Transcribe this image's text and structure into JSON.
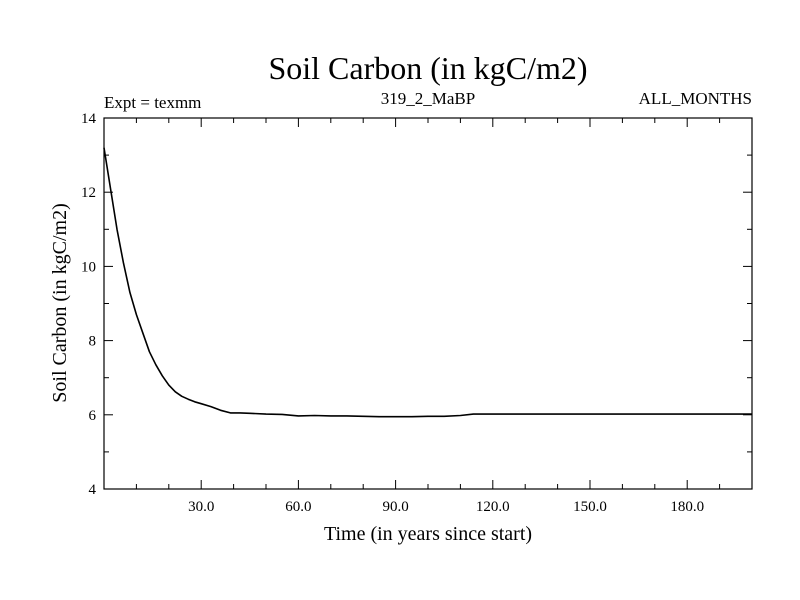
{
  "chart_data": {
    "type": "line",
    "title": "Soil Carbon (in kgC/m2)",
    "subtitle_left": "Expt = texmm",
    "subtitle_center": "319_2_MaBP",
    "subtitle_right": "ALL_MONTHS",
    "xlabel": "Time (in years since start)",
    "ylabel": "Soil Carbon (in kgC/m2)",
    "xlim": [
      0,
      200
    ],
    "ylim": [
      4,
      14
    ],
    "xticks": [
      30,
      60,
      90,
      120,
      150,
      180
    ],
    "xtick_labels": [
      "30.0",
      "60.0",
      "90.0",
      "120.0",
      "150.0",
      "180.0"
    ],
    "yticks": [
      4,
      6,
      8,
      10,
      12,
      14
    ],
    "ytick_labels": [
      "4",
      "6",
      "8",
      "10",
      "12",
      "14"
    ],
    "series": [
      {
        "name": "soil carbon",
        "color": "#000000",
        "x": [
          0,
          2,
          4,
          6,
          8,
          10,
          12,
          14,
          16,
          18,
          20,
          22,
          24,
          26,
          28,
          30,
          33,
          36,
          39,
          42,
          45,
          50,
          55,
          60,
          65,
          70,
          75,
          80,
          85,
          90,
          95,
          100,
          105,
          110,
          114,
          120,
          150,
          180,
          200
        ],
        "y": [
          13.2,
          12.1,
          11.0,
          10.1,
          9.3,
          8.7,
          8.2,
          7.7,
          7.35,
          7.05,
          6.8,
          6.62,
          6.5,
          6.42,
          6.35,
          6.3,
          6.22,
          6.12,
          6.05,
          6.05,
          6.04,
          6.02,
          6.01,
          5.97,
          5.98,
          5.97,
          5.97,
          5.96,
          5.95,
          5.95,
          5.95,
          5.96,
          5.96,
          5.98,
          6.02,
          6.02,
          6.02,
          6.02,
          6.02
        ]
      }
    ]
  }
}
